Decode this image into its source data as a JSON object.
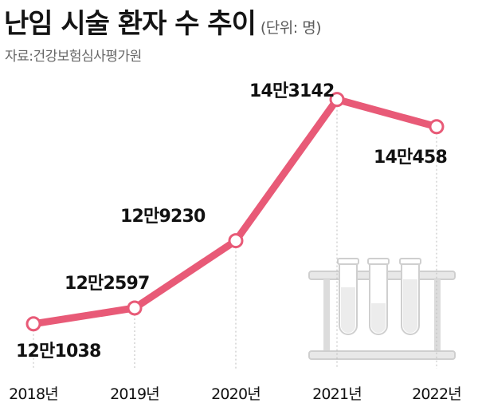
{
  "title": "난임 시술 환자 수 추이",
  "unit": "(단위: 명)",
  "source": "자료:건강보험심사평가원",
  "colors": {
    "line": "#e85a77",
    "guide": "#bdbdbd",
    "illustration": "#d4d4d4"
  },
  "icon": "test-tubes-icon",
  "chart_data": {
    "type": "line",
    "categories": [
      "2018년",
      "2019년",
      "2020년",
      "2021년",
      "2022년"
    ],
    "values": [
      121038,
      122597,
      129230,
      143142,
      140458
    ],
    "data_labels": [
      "12만1038",
      "12만2597",
      "12만9230",
      "14만3142",
      "14만458"
    ],
    "title": "난임 시술 환자 수 추이",
    "ylabel": "",
    "xlabel": "",
    "grid": false,
    "legend": "none"
  }
}
